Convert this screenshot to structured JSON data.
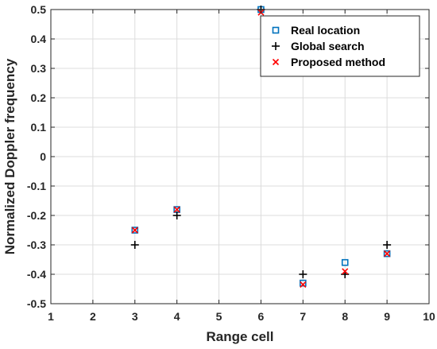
{
  "chart_data": {
    "type": "scatter",
    "title": "",
    "xlabel": "Range cell",
    "ylabel": "Normalized Doppler frequency",
    "xlim": [
      1,
      10
    ],
    "ylim": [
      -0.5,
      0.5
    ],
    "xticks": [
      "1",
      "2",
      "3",
      "4",
      "5",
      "6",
      "7",
      "8",
      "9",
      "10"
    ],
    "yticks": [
      "0.5",
      "0.4",
      "0.3",
      "0.2",
      "0.1",
      "0",
      "-0.1",
      "-0.2",
      "-0.3",
      "-0.4",
      "-0.5"
    ],
    "grid": true,
    "legend_position": "top-right",
    "series": [
      {
        "name": "Real location",
        "marker": "square",
        "color": "#0072BD",
        "points": [
          [
            3,
            -0.25
          ],
          [
            4,
            -0.18
          ],
          [
            6,
            0.5
          ],
          [
            7,
            -0.43
          ],
          [
            8,
            -0.36
          ],
          [
            9,
            -0.33
          ]
        ]
      },
      {
        "name": "Global search",
        "marker": "plus",
        "color": "#000000",
        "points": [
          [
            3,
            -0.3
          ],
          [
            4,
            -0.2
          ],
          [
            6,
            0.5
          ],
          [
            7,
            -0.4
          ],
          [
            8,
            -0.4
          ],
          [
            9,
            -0.3
          ]
        ]
      },
      {
        "name": "Proposed method",
        "marker": "cross",
        "color": "#FF0000",
        "points": [
          [
            3,
            -0.25
          ],
          [
            4,
            -0.18
          ],
          [
            6,
            0.49
          ],
          [
            7,
            -0.435
          ],
          [
            8,
            -0.39
          ],
          [
            9,
            -0.33
          ]
        ]
      }
    ]
  }
}
